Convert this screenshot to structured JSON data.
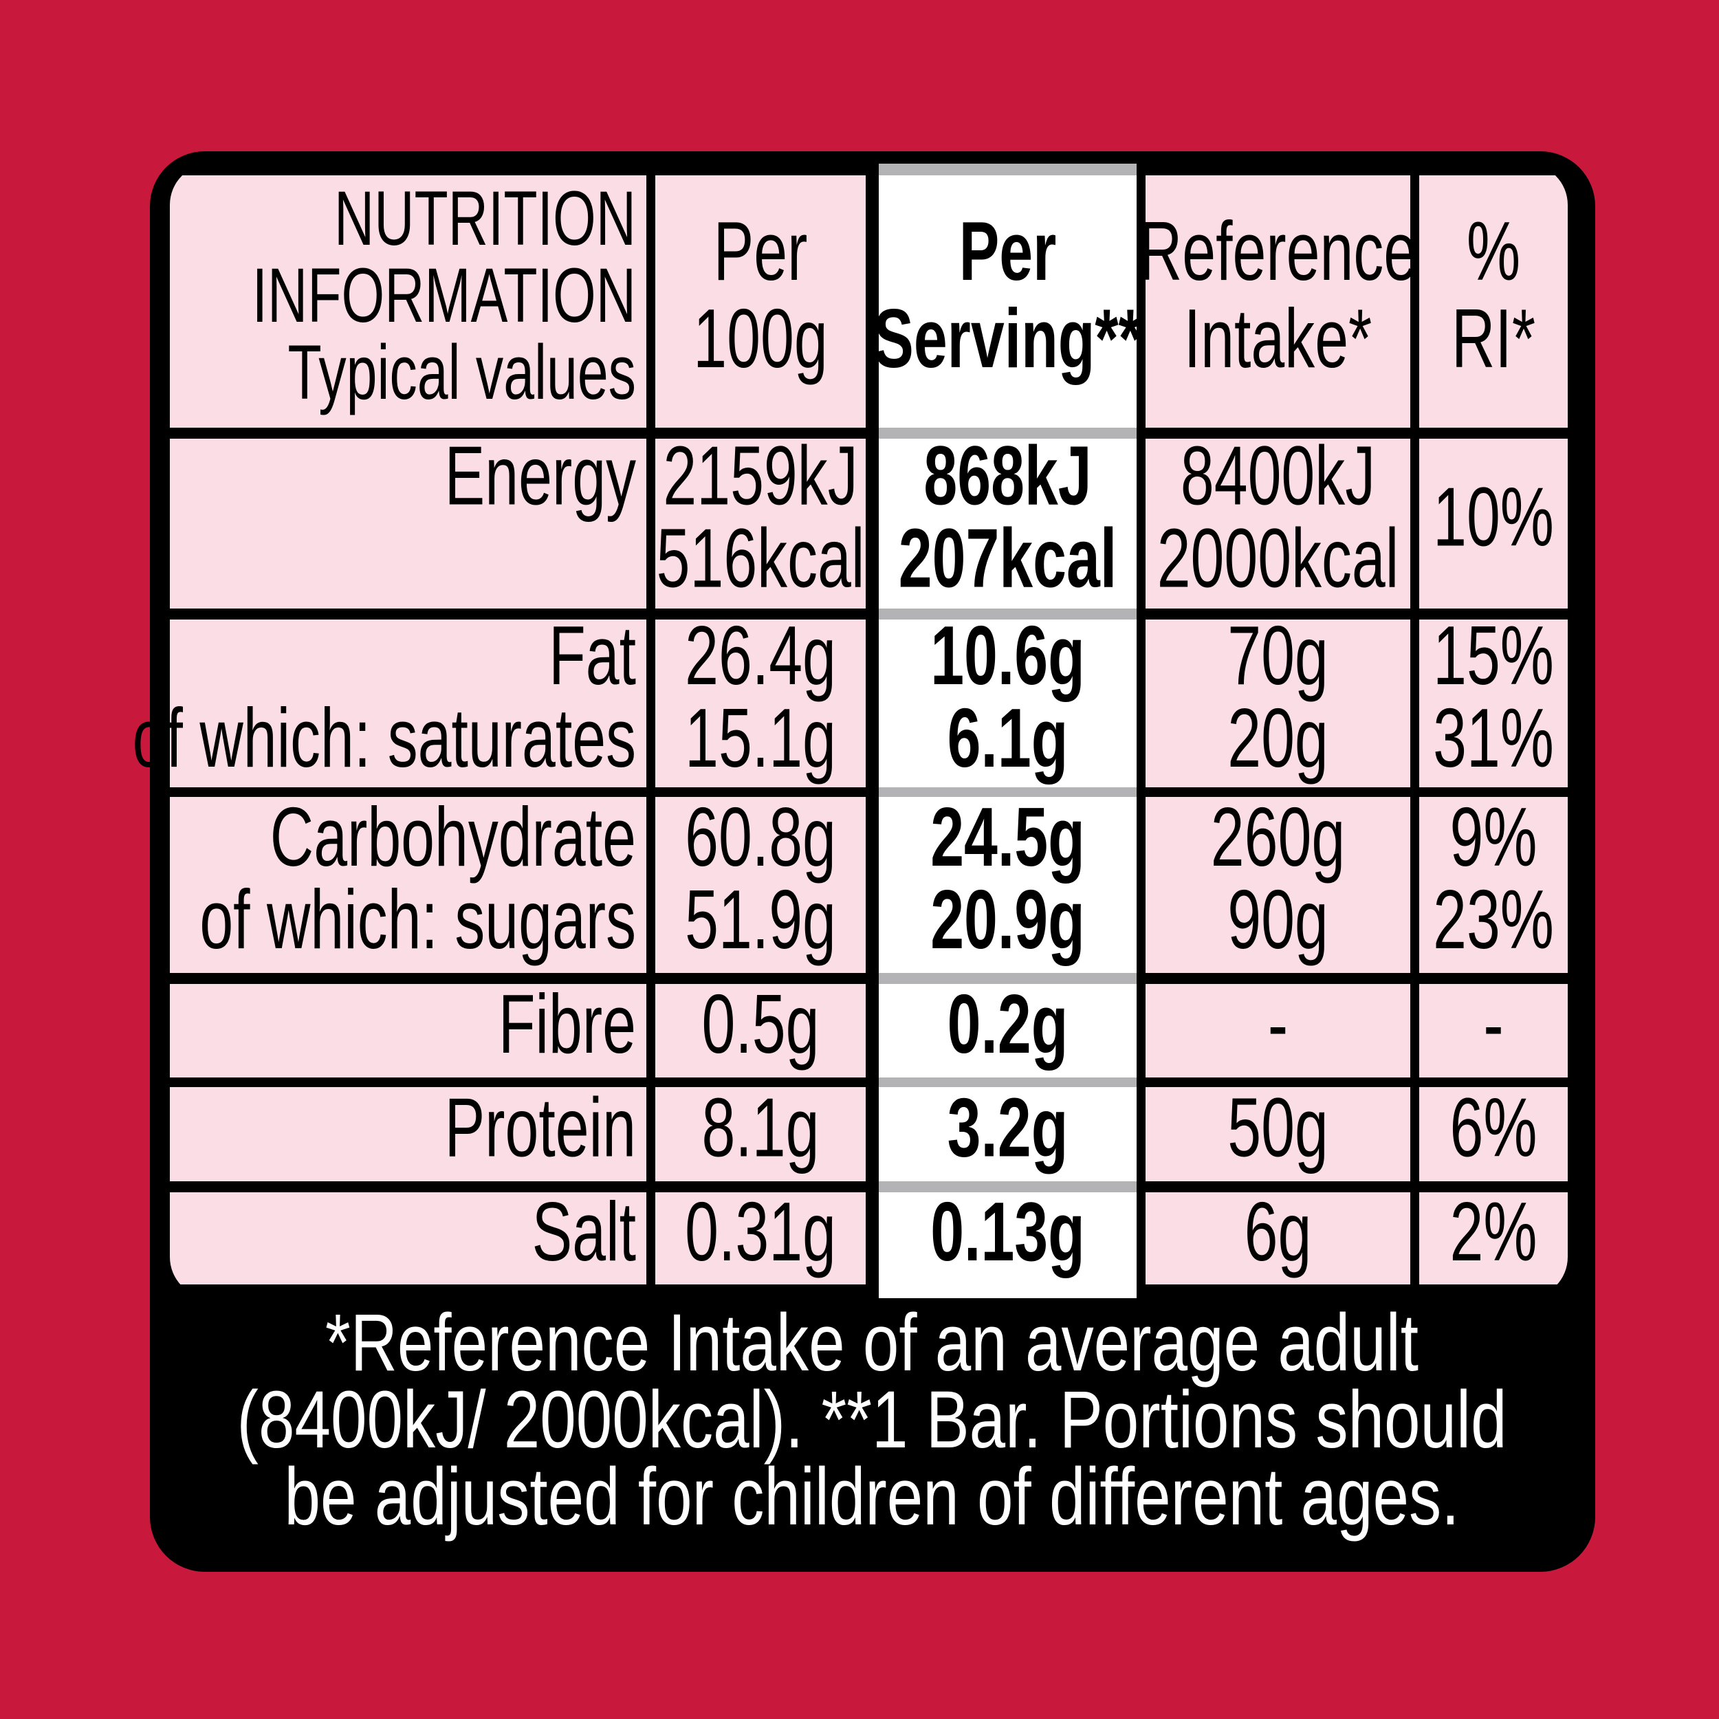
{
  "header": {
    "label": [
      "NUTRITION",
      "INFORMATION",
      "Typical values"
    ],
    "per_100g": [
      "Per",
      "100g"
    ],
    "per_serving": [
      "Per",
      "Serving**"
    ],
    "reference_intake": [
      "Reference",
      "Intake*"
    ],
    "ri_percent": [
      "%",
      "RI*"
    ]
  },
  "rows": [
    {
      "label": [
        "Energy"
      ],
      "per_100g": [
        "2159kJ",
        "516kcal"
      ],
      "per_serving": [
        "868kJ",
        "207kcal"
      ],
      "reference_intake": [
        "8400kJ",
        "2000kcal"
      ],
      "ri_percent": [
        "10%"
      ]
    },
    {
      "label": [
        "Fat",
        "of which: saturates"
      ],
      "per_100g": [
        "26.4g",
        "15.1g"
      ],
      "per_serving": [
        "10.6g",
        "6.1g"
      ],
      "reference_intake": [
        "70g",
        "20g"
      ],
      "ri_percent": [
        "15%",
        "31%"
      ]
    },
    {
      "label": [
        "Carbohydrate",
        "of which: sugars"
      ],
      "per_100g": [
        "60.8g",
        "51.9g"
      ],
      "per_serving": [
        "24.5g",
        "20.9g"
      ],
      "reference_intake": [
        "260g",
        "90g"
      ],
      "ri_percent": [
        "9%",
        "23%"
      ]
    },
    {
      "label": [
        "Fibre"
      ],
      "per_100g": [
        "0.5g"
      ],
      "per_serving": [
        "0.2g"
      ],
      "reference_intake": [
        "-"
      ],
      "ri_percent": [
        "-"
      ]
    },
    {
      "label": [
        "Protein"
      ],
      "per_100g": [
        "8.1g"
      ],
      "per_serving": [
        "3.2g"
      ],
      "reference_intake": [
        "50g"
      ],
      "ri_percent": [
        "6%"
      ]
    },
    {
      "label": [
        "Salt"
      ],
      "per_100g": [
        "0.31g"
      ],
      "per_serving": [
        "0.13g"
      ],
      "reference_intake": [
        "6g"
      ],
      "ri_percent": [
        "2%"
      ]
    }
  ],
  "footnote": [
    "*Reference Intake of an average adult",
    "(8400kJ/ 2000kcal). **1 Bar. Portions should",
    "be adjusted for children of different ages."
  ]
}
